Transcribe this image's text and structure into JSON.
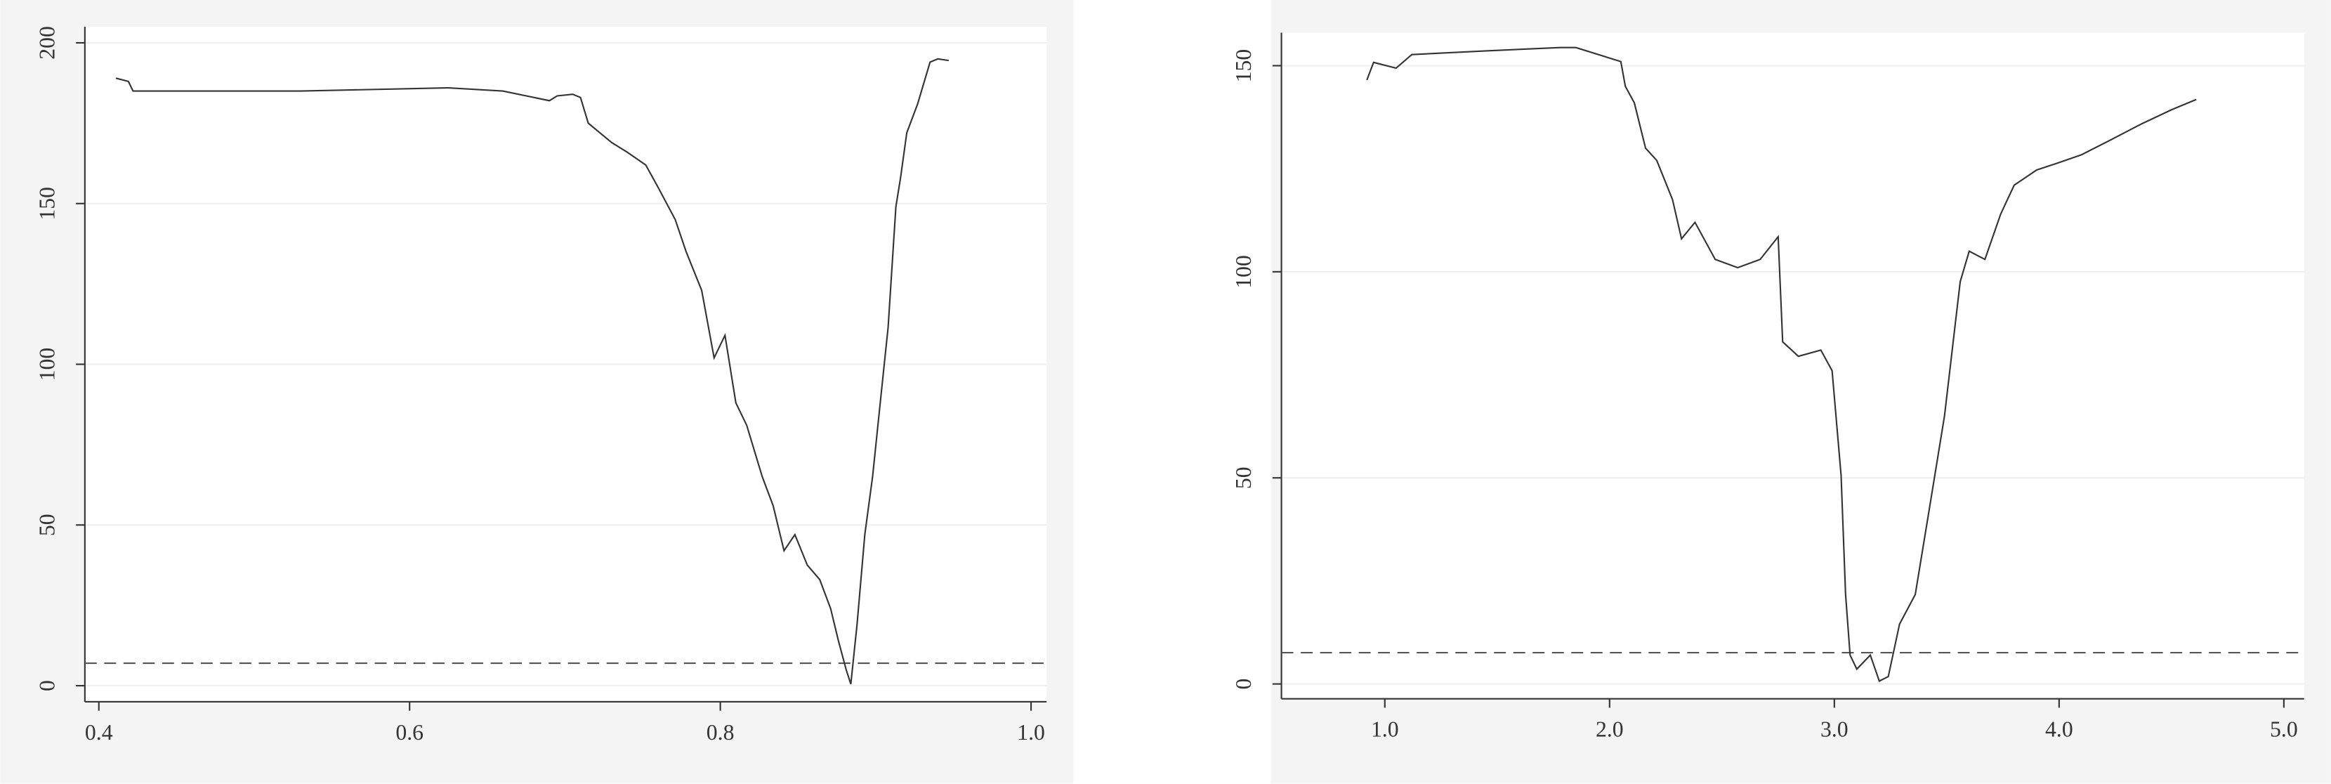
{
  "chart_data": [
    {
      "type": "line",
      "x": [
        0.411,
        0.419,
        0.422,
        0.53,
        0.625,
        0.66,
        0.69,
        0.695,
        0.705,
        0.71,
        0.715,
        0.73,
        0.74,
        0.752,
        0.76,
        0.771,
        0.778,
        0.788,
        0.796,
        0.803,
        0.81,
        0.817,
        0.827,
        0.834,
        0.841,
        0.848,
        0.856,
        0.864,
        0.871,
        0.876,
        0.881,
        0.884,
        0.888,
        0.893,
        0.898,
        0.904,
        0.908,
        0.913,
        0.916,
        0.92,
        0.927,
        0.935,
        0.94,
        0.947
      ],
      "series": [
        {
          "color": "#333333",
          "values": [
            189,
            188,
            185,
            185,
            186,
            185,
            182,
            183.5,
            184,
            183,
            175,
            169,
            166,
            162,
            155,
            145,
            135,
            123,
            102,
            109,
            88,
            81,
            65,
            56,
            42,
            47,
            37.5,
            33,
            24,
            14,
            5,
            0.5,
            19,
            47,
            65,
            93,
            111.5,
            149,
            158,
            172,
            181,
            194,
            195,
            194.5
          ]
        }
      ],
      "hline": 7,
      "xlim": [
        0.391,
        1.01
      ],
      "ylim": [
        -5,
        205
      ],
      "xticks": [
        0.4,
        0.6,
        0.8,
        {
          "value": 1,
          "label": "1.0"
        }
      ],
      "yticks": [
        0,
        50,
        100,
        150,
        200
      ],
      "grid": true
    },
    {
      "type": "line",
      "x": [
        0.92,
        0.95,
        1.05,
        1.12,
        1.45,
        1.78,
        1.85,
        2.05,
        2.07,
        2.11,
        2.16,
        2.21,
        2.28,
        2.32,
        2.38,
        2.47,
        2.57,
        2.67,
        2.75,
        2.77,
        2.84,
        2.94,
        2.99,
        3.03,
        3.05,
        3.07,
        3.1,
        3.16,
        3.2,
        3.24,
        3.29,
        3.36,
        3.42,
        3.49,
        3.56,
        3.6,
        3.67,
        3.74,
        3.8,
        3.9,
        4.0,
        4.1,
        4.23,
        4.36,
        4.5,
        4.61
      ],
      "series": [
        {
          "color": "#333333",
          "values": [
            146.5,
            150.8,
            149.4,
            152.7,
            153.6,
            154.4,
            154.4,
            151,
            145,
            141,
            130,
            127,
            117.5,
            108,
            112,
            103,
            101,
            103,
            108.5,
            83,
            79.5,
            81,
            76,
            50.6,
            21.7,
            7,
            3.6,
            7,
            0.7,
            1.8,
            14.5,
            21.7,
            41.6,
            65,
            97.6,
            105,
            103,
            114,
            121,
            124.7,
            126.5,
            128.4,
            132,
            135.7,
            139.3,
            141.8
          ]
        }
      ],
      "hline": 7.6,
      "xlim": [
        0.54,
        5.09
      ],
      "ylim": [
        -3.6,
        158
      ],
      "xticks": [
        {
          "value": 1,
          "label": "1.0"
        },
        {
          "value": 2,
          "label": "2.0"
        },
        {
          "value": 3,
          "label": "3.0"
        },
        {
          "value": 4,
          "label": "4.0"
        },
        {
          "value": 5,
          "label": "5.0"
        }
      ],
      "yticks": [
        0,
        50,
        100,
        150
      ],
      "grid": true
    }
  ]
}
